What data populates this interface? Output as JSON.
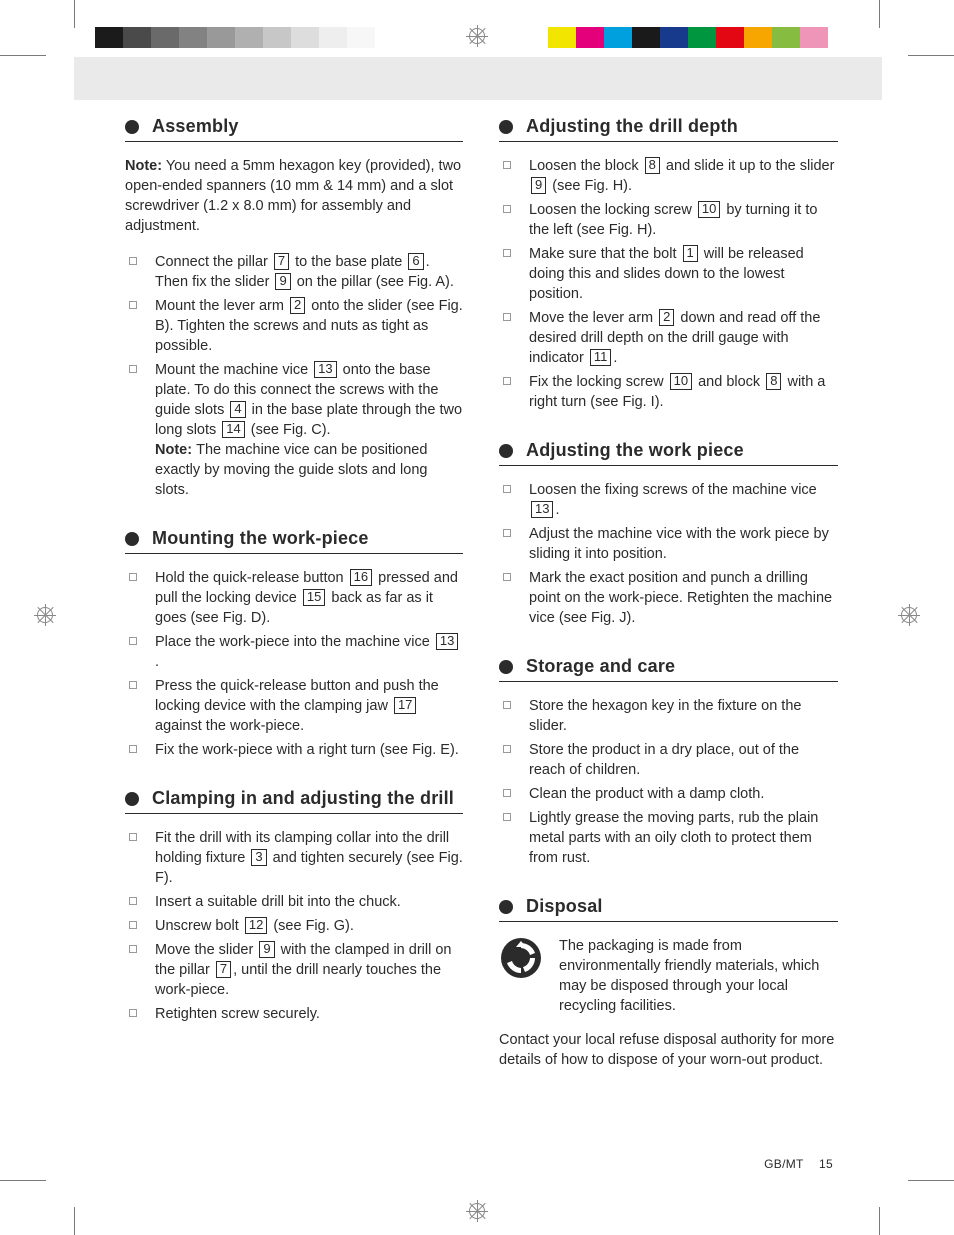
{
  "colorbars": {
    "left": [
      "#1b1b1b",
      "#4a4a4a",
      "#6a6a6a",
      "#828282",
      "#999999",
      "#b0b0b0",
      "#c7c7c7",
      "#dddddd",
      "#eeeeee",
      "#f7f7f7"
    ],
    "right": [
      "#f2e500",
      "#e3007a",
      "#00a0de",
      "#1a1a1a",
      "#173a8c",
      "#009640",
      "#e30613",
      "#f7a600",
      "#86bc40",
      "#ef95b7"
    ]
  },
  "band_color": "#eaeaea",
  "left_col": {
    "assembly": {
      "title": "Assembly",
      "intro_note_label": "Note:",
      "intro": "You need a 5mm hexagon key (provided), two open-ended spanners (10 mm & 14 mm) and a slot screwdriver (1.2 x 8.0 mm) for assembly and adjustment.",
      "items": [
        {
          "segs": [
            {
              "t": "Connect the pillar "
            },
            {
              "r": "7"
            },
            {
              "t": " to the base plate "
            },
            {
              "r": "6"
            },
            {
              "t": ". Then fix the slider "
            },
            {
              "r": "9"
            },
            {
              "t": " on the pillar (see Fig. A)."
            }
          ]
        },
        {
          "segs": [
            {
              "t": "Mount the lever arm "
            },
            {
              "r": "2"
            },
            {
              "t": " onto the slider (see Fig. B). Tighten the screws and nuts as tight as possible."
            }
          ]
        },
        {
          "segs": [
            {
              "t": "Mount the machine vice "
            },
            {
              "r": "13"
            },
            {
              "t": " onto the base plate. To do this connect the screws with the guide slots "
            },
            {
              "r": "4"
            },
            {
              "t": " in the base plate through the two long slots "
            },
            {
              "r": "14"
            },
            {
              "t": " (see Fig. C)."
            }
          ],
          "after_note_label": "Note:",
          "after_note": "The machine vice can be positioned exactly by moving the guide slots and long slots."
        }
      ]
    },
    "mounting": {
      "title": "Mounting the work-piece",
      "items": [
        {
          "segs": [
            {
              "t": "Hold the quick-release button "
            },
            {
              "r": "16"
            },
            {
              "t": " pressed and pull the locking device "
            },
            {
              "r": "15"
            },
            {
              "t": " back as far as it goes (see Fig. D)."
            }
          ]
        },
        {
          "segs": [
            {
              "t": "Place the work-piece into the machine vice "
            },
            {
              "r": "13"
            },
            {
              "t": "."
            }
          ]
        },
        {
          "segs": [
            {
              "t": "Press the quick-release button and push the locking device with the clamping jaw "
            },
            {
              "r": "17"
            },
            {
              "t": " against the work-piece."
            }
          ]
        },
        {
          "segs": [
            {
              "t": "Fix the work-piece with a right turn (see Fig. E)."
            }
          ]
        }
      ]
    },
    "clamping": {
      "title": "Clamping in and adjusting the drill",
      "items": [
        {
          "segs": [
            {
              "t": "Fit the drill with its clamping collar into the drill holding fixture "
            },
            {
              "r": "3"
            },
            {
              "t": " and tighten securely (see Fig. F)."
            }
          ]
        },
        {
          "segs": [
            {
              "t": "Insert a suitable drill bit into the chuck."
            }
          ]
        },
        {
          "segs": [
            {
              "t": "Unscrew bolt "
            },
            {
              "r": "12"
            },
            {
              "t": " (see Fig. G)."
            }
          ]
        },
        {
          "segs": [
            {
              "t": "Move the slider "
            },
            {
              "r": "9"
            },
            {
              "t": " with the clamped in drill on the pillar "
            },
            {
              "r": "7"
            },
            {
              "t": ", until the drill nearly touches the work-piece."
            }
          ]
        },
        {
          "segs": [
            {
              "t": "Retighten screw securely."
            }
          ]
        }
      ]
    }
  },
  "right_col": {
    "depth": {
      "title": "Adjusting the drill depth",
      "items": [
        {
          "segs": [
            {
              "t": "Loosen the block "
            },
            {
              "r": "8"
            },
            {
              "t": " and slide it up to the slider "
            },
            {
              "r": "9"
            },
            {
              "t": " (see Fig. H)."
            }
          ]
        },
        {
          "segs": [
            {
              "t": "Loosen the locking screw "
            },
            {
              "r": "10"
            },
            {
              "t": " by turning it to the left (see Fig. H)."
            }
          ]
        },
        {
          "segs": [
            {
              "t": "Make sure that the bolt "
            },
            {
              "r": "1"
            },
            {
              "t": " will be released doing this and slides down to the lowest position."
            }
          ]
        },
        {
          "segs": [
            {
              "t": "Move the lever arm "
            },
            {
              "r": "2"
            },
            {
              "t": " down and read off the desired drill depth on the drill gauge with indicator "
            },
            {
              "r": "11"
            },
            {
              "t": "."
            }
          ]
        },
        {
          "segs": [
            {
              "t": "Fix the locking screw "
            },
            {
              "r": "10"
            },
            {
              "t": " and block "
            },
            {
              "r": "8"
            },
            {
              "t": " with a right turn (see Fig. I)."
            }
          ]
        }
      ]
    },
    "workpiece": {
      "title": "Adjusting the work piece",
      "items": [
        {
          "segs": [
            {
              "t": "Loosen the fixing screws of the machine vice "
            },
            {
              "r": "13"
            },
            {
              "t": "."
            }
          ]
        },
        {
          "segs": [
            {
              "t": "Adjust the machine vice with the work piece by sliding it into position."
            }
          ]
        },
        {
          "segs": [
            {
              "t": "Mark the exact position and punch a drilling point on the work-piece. Retighten the machine vice (see Fig. J)."
            }
          ]
        }
      ]
    },
    "storage": {
      "title": "Storage and care",
      "items": [
        {
          "segs": [
            {
              "t": "Store the hexagon key in the fixture on the slider."
            }
          ]
        },
        {
          "segs": [
            {
              "t": "Store the product in a dry place, out of the reach of children."
            }
          ]
        },
        {
          "segs": [
            {
              "t": "Clean the product with a damp cloth."
            }
          ]
        },
        {
          "segs": [
            {
              "t": "Lightly grease the moving parts, rub the plain metal parts with an oily cloth to protect them from rust."
            }
          ]
        }
      ]
    },
    "disposal": {
      "title": "Disposal",
      "text": "The packaging is made from environmentally friendly materials, which may be disposed through your local recycling facilities.",
      "follow": "Contact your local refuse disposal authority for more details of how to dispose of your worn-out product."
    }
  },
  "footer": {
    "region": "GB/MT",
    "page": "15"
  }
}
